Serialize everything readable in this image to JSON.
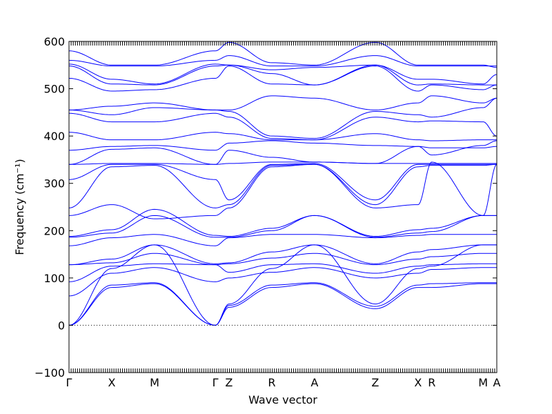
{
  "chart_data": {
    "type": "line",
    "xlabel": "Wave vector",
    "ylabel": "Frequency (cm⁻¹)",
    "ylim": [
      -100,
      600
    ],
    "yticks": [
      -100,
      0,
      100,
      200,
      300,
      400,
      500,
      600
    ],
    "xlim": [
      0,
      10
    ],
    "high_symmetry_points": [
      {
        "label": "Γ",
        "x": 0.0
      },
      {
        "label": "X",
        "x": 1.0
      },
      {
        "label": "M",
        "x": 2.0
      },
      {
        "label": "Γ",
        "x": 3.42
      },
      {
        "label": "Z",
        "x": 3.74
      },
      {
        "label": "R",
        "x": 4.74
      },
      {
        "label": "A",
        "x": 5.74
      },
      {
        "label": "Z",
        "x": 7.16
      },
      {
        "label": "X",
        "x": 8.16
      },
      {
        "label": "R",
        "x": 8.48
      },
      {
        "label": "M",
        "x": 9.68
      },
      {
        "label": "A",
        "x": 10.0
      }
    ],
    "line_color": "#0000ff",
    "zero_line": true,
    "minor_ticks_per_unit": 20,
    "series": [
      {
        "x": [
          0,
          1,
          2,
          3.42,
          3.74,
          4.74,
          5.74,
          7.16,
          8.16,
          8.48,
          9.68,
          10
        ],
        "y": [
          0,
          80,
          88,
          0,
          38,
          80,
          88,
          35,
          80,
          80,
          88,
          88
        ]
      },
      {
        "x": [
          0,
          1,
          2,
          3.42,
          3.74,
          4.74,
          5.74,
          7.16,
          8.16,
          8.48,
          9.68,
          10
        ],
        "y": [
          0,
          85,
          90,
          0,
          42,
          85,
          90,
          40,
          85,
          88,
          90,
          90
        ]
      },
      {
        "x": [
          0,
          1,
          2,
          3.42,
          3.74,
          4.74,
          5.74,
          7.16,
          8.16,
          8.48,
          9.68,
          10
        ],
        "y": [
          0,
          120,
          170,
          0,
          45,
          120,
          170,
          45,
          120,
          125,
          170,
          170
        ]
      },
      {
        "x": [
          0,
          1,
          2,
          3.42,
          3.74,
          4.74,
          5.74,
          7.16,
          8.16,
          8.48,
          9.68,
          10
        ],
        "y": [
          62,
          110,
          122,
          92,
          100,
          112,
          122,
          100,
          110,
          118,
          122,
          122
        ]
      },
      {
        "x": [
          0,
          1,
          2,
          3.42,
          3.74,
          4.74,
          5.74,
          7.16,
          8.16,
          8.48,
          9.68,
          10
        ],
        "y": [
          92,
          125,
          130,
          128,
          112,
          128,
          130,
          110,
          125,
          128,
          130,
          130
        ]
      },
      {
        "x": [
          0,
          1,
          2,
          3.42,
          3.74,
          4.74,
          5.74,
          7.16,
          8.16,
          8.48,
          9.68,
          10
        ],
        "y": [
          128,
          132,
          152,
          128,
          130,
          142,
          152,
          128,
          140,
          145,
          152,
          152
        ]
      },
      {
        "x": [
          0,
          1,
          2,
          3.42,
          3.74,
          4.74,
          5.74,
          7.16,
          8.16,
          8.48,
          9.68,
          10
        ],
        "y": [
          128,
          140,
          170,
          130,
          132,
          155,
          170,
          130,
          155,
          160,
          170,
          170
        ]
      },
      {
        "x": [
          0,
          1,
          2,
          3.42,
          3.74,
          4.74,
          5.74,
          7.16,
          8.16,
          8.48,
          9.68,
          10
        ],
        "y": [
          168,
          185,
          192,
          168,
          185,
          192,
          192,
          185,
          190,
          192,
          192,
          192
        ]
      },
      {
        "x": [
          0,
          1,
          2,
          3.42,
          3.74,
          4.74,
          5.74,
          7.16,
          8.16,
          8.48,
          9.68,
          10
        ],
        "y": [
          186,
          195,
          232,
          186,
          186,
          200,
          232,
          186,
          195,
          198,
          232,
          232
        ]
      },
      {
        "x": [
          0,
          1,
          2,
          3.42,
          3.74,
          4.74,
          5.74,
          7.16,
          8.16,
          8.48,
          9.68,
          10
        ],
        "y": [
          188,
          202,
          245,
          190,
          188,
          205,
          232,
          188,
          202,
          205,
          232,
          232
        ]
      },
      {
        "x": [
          0,
          1,
          2,
          3.42,
          3.74,
          4.74,
          5.74,
          7.16,
          8.16,
          8.48,
          9.68,
          10
        ],
        "y": [
          232,
          255,
          225,
          232,
          248,
          335,
          340,
          248,
          255,
          345,
          232,
          340
        ]
      },
      {
        "x": [
          0,
          1,
          2,
          3.42,
          3.74,
          4.74,
          5.74,
          7.16,
          8.16,
          8.48,
          9.68,
          10
        ],
        "y": [
          248,
          335,
          338,
          248,
          255,
          338,
          340,
          255,
          335,
          338,
          338,
          340
        ]
      },
      {
        "x": [
          0,
          1,
          2,
          3.42,
          3.74,
          4.74,
          5.74,
          7.16,
          8.16,
          8.48,
          9.68,
          10
        ],
        "y": [
          308,
          340,
          340,
          308,
          265,
          340,
          342,
          265,
          340,
          340,
          340,
          340
        ]
      },
      {
        "x": [
          0,
          1,
          2,
          3.42,
          3.74,
          4.74,
          5.74,
          7.16,
          8.16,
          8.48,
          9.68,
          10
        ],
        "y": [
          340,
          342,
          342,
          340,
          342,
          345,
          345,
          342,
          342,
          342,
          342,
          342
        ]
      },
      {
        "x": [
          0,
          1,
          2,
          3.42,
          3.74,
          4.74,
          5.74,
          7.16,
          8.16,
          8.48,
          9.68,
          10
        ],
        "y": [
          340,
          372,
          375,
          340,
          370,
          355,
          345,
          342,
          378,
          375,
          375,
          378
        ]
      },
      {
        "x": [
          0,
          1,
          2,
          3.42,
          3.74,
          4.74,
          5.74,
          7.16,
          8.16,
          8.48,
          9.68,
          10
        ],
        "y": [
          370,
          378,
          380,
          370,
          385,
          390,
          385,
          380,
          378,
          360,
          380,
          390
        ]
      },
      {
        "x": [
          0,
          1,
          2,
          3.42,
          3.74,
          4.74,
          5.74,
          7.16,
          8.16,
          8.48,
          9.68,
          10
        ],
        "y": [
          408,
          392,
          392,
          408,
          405,
          392,
          392,
          405,
          392,
          390,
          392,
          392
        ]
      },
      {
        "x": [
          0,
          1,
          2,
          3.42,
          3.74,
          4.74,
          5.74,
          7.16,
          8.16,
          8.48,
          9.68,
          10
        ],
        "y": [
          448,
          430,
          430,
          448,
          440,
          395,
          392,
          440,
          430,
          432,
          430,
          400
        ]
      },
      {
        "x": [
          0,
          1,
          2,
          3.42,
          3.74,
          4.74,
          5.74,
          7.16,
          8.16,
          8.48,
          9.68,
          10
        ],
        "y": [
          455,
          445,
          460,
          455,
          452,
          400,
          395,
          452,
          445,
          440,
          460,
          480
        ]
      },
      {
        "x": [
          0,
          1,
          2,
          3.42,
          3.74,
          4.74,
          5.74,
          7.16,
          8.16,
          8.48,
          9.68,
          10
        ],
        "y": [
          455,
          463,
          470,
          455,
          455,
          485,
          480,
          455,
          470,
          485,
          470,
          480
        ]
      },
      {
        "x": [
          0,
          1,
          2,
          3.42,
          3.74,
          4.74,
          5.74,
          7.16,
          8.16,
          8.48,
          9.68,
          10
        ],
        "y": [
          522,
          495,
          498,
          522,
          548,
          510,
          508,
          548,
          495,
          508,
          498,
          508
        ]
      },
      {
        "x": [
          0,
          1,
          2,
          3.42,
          3.74,
          4.74,
          5.74,
          7.16,
          8.16,
          8.48,
          9.68,
          10
        ],
        "y": [
          548,
          510,
          508,
          548,
          550,
          532,
          508,
          550,
          508,
          510,
          508,
          508
        ]
      },
      {
        "x": [
          0,
          1,
          2,
          3.42,
          3.74,
          4.74,
          5.74,
          7.16,
          8.16,
          8.48,
          9.68,
          10
        ],
        "y": [
          552,
          520,
          510,
          552,
          550,
          540,
          545,
          550,
          520,
          520,
          510,
          530
        ]
      },
      {
        "x": [
          0,
          1,
          2,
          3.42,
          3.74,
          4.74,
          5.74,
          7.16,
          8.16,
          8.48,
          9.68,
          10
        ],
        "y": [
          560,
          548,
          548,
          560,
          570,
          548,
          548,
          570,
          548,
          548,
          548,
          548
        ]
      },
      {
        "x": [
          0,
          1,
          2,
          3.42,
          3.74,
          4.74,
          5.74,
          7.16,
          8.16,
          8.48,
          9.68,
          10
        ],
        "y": [
          580,
          550,
          550,
          580,
          598,
          555,
          550,
          598,
          550,
          550,
          550,
          545
        ]
      }
    ]
  }
}
